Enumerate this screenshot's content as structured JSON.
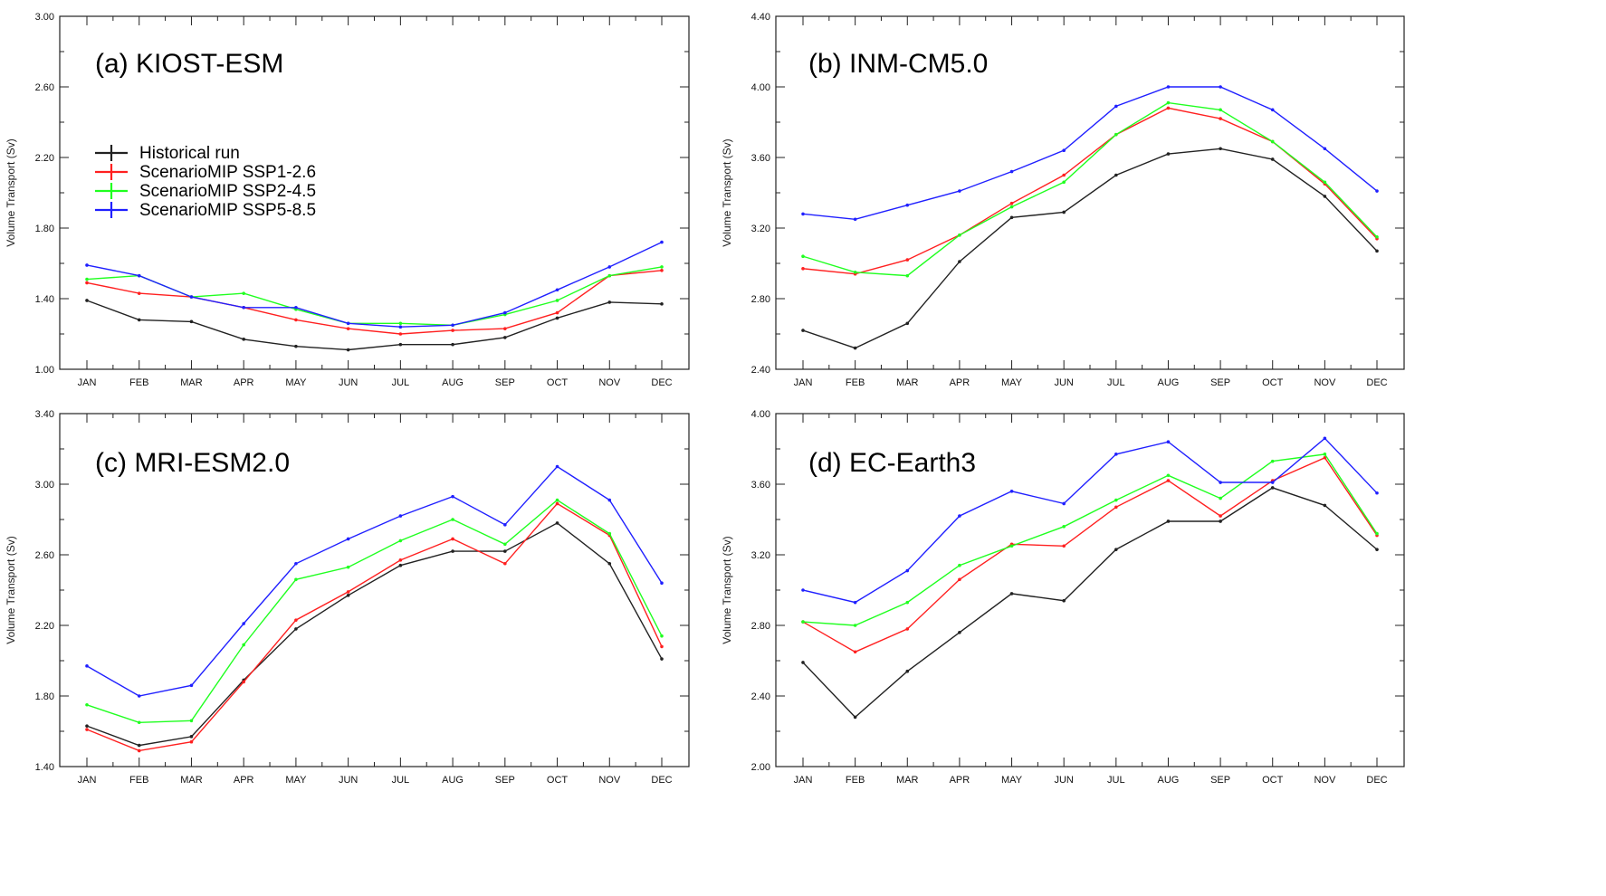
{
  "chart_data": {
    "type": "line",
    "months": [
      "JAN",
      "FEB",
      "MAR",
      "APR",
      "MAY",
      "JUN",
      "JUL",
      "AUG",
      "SEP",
      "OCT",
      "NOV",
      "DEC"
    ],
    "ylabel": "Volume Transport (Sv)",
    "legend": [
      {
        "name": "Historical run",
        "color": "#222222"
      },
      {
        "name": "ScenarioMIP SSP1-2.6",
        "color": "#ff2020"
      },
      {
        "name": "ScenarioMIP SSP2-4.5",
        "color": "#20ff20"
      },
      {
        "name": "ScenarioMIP SSP5-8.5",
        "color": "#2020ff"
      }
    ],
    "panels": [
      {
        "title": "(a) KIOST-ESM",
        "ylim": [
          1.0,
          3.0
        ],
        "yticks": [
          "1.00",
          "1.40",
          "1.80",
          "2.20",
          "2.60",
          "3.00"
        ],
        "series": [
          {
            "name": "Historical run",
            "values": [
              1.39,
              1.28,
              1.27,
              1.17,
              1.13,
              1.11,
              1.14,
              1.14,
              1.18,
              1.29,
              1.38,
              1.37
            ]
          },
          {
            "name": "ScenarioMIP SSP1-2.6",
            "values": [
              1.49,
              1.43,
              1.41,
              1.35,
              1.28,
              1.23,
              1.2,
              1.22,
              1.23,
              1.32,
              1.53,
              1.56
            ]
          },
          {
            "name": "ScenarioMIP SSP2-4.5",
            "values": [
              1.51,
              1.53,
              1.41,
              1.43,
              1.34,
              1.26,
              1.26,
              1.25,
              1.31,
              1.39,
              1.53,
              1.58
            ]
          },
          {
            "name": "ScenarioMIP SSP5-8.5",
            "values": [
              1.59,
              1.53,
              1.41,
              1.35,
              1.35,
              1.26,
              1.24,
              1.25,
              1.32,
              1.45,
              1.58,
              1.72
            ]
          }
        ]
      },
      {
        "title": "(b) INM-CM5.0",
        "ylim": [
          2.4,
          4.4
        ],
        "yticks": [
          "2.40",
          "2.80",
          "3.20",
          "3.60",
          "4.00",
          "4.40"
        ],
        "series": [
          {
            "name": "Historical run",
            "values": [
              2.62,
              2.52,
              2.66,
              3.01,
              3.26,
              3.29,
              3.5,
              3.62,
              3.65,
              3.59,
              3.38,
              3.07
            ]
          },
          {
            "name": "ScenarioMIP SSP1-2.6",
            "values": [
              2.97,
              2.94,
              3.02,
              3.16,
              3.34,
              3.5,
              3.73,
              3.88,
              3.82,
              3.69,
              3.45,
              3.14
            ]
          },
          {
            "name": "ScenarioMIP SSP2-4.5",
            "values": [
              3.04,
              2.95,
              2.93,
              3.16,
              3.32,
              3.46,
              3.73,
              3.91,
              3.87,
              3.69,
              3.46,
              3.15
            ]
          },
          {
            "name": "ScenarioMIP SSP5-8.5",
            "values": [
              3.28,
              3.25,
              3.33,
              3.41,
              3.52,
              3.64,
              3.89,
              4.0,
              4.0,
              3.87,
              3.65,
              3.41
            ]
          }
        ]
      },
      {
        "title": "(c) MRI-ESM2.0",
        "ylim": [
          1.4,
          3.4
        ],
        "yticks": [
          "1.40",
          "1.80",
          "2.20",
          "2.60",
          "3.00",
          "3.40"
        ],
        "series": [
          {
            "name": "Historical run",
            "values": [
              1.63,
              1.52,
              1.57,
              1.89,
              2.18,
              2.37,
              2.54,
              2.62,
              2.62,
              2.78,
              2.55,
              2.01
            ]
          },
          {
            "name": "ScenarioMIP SSP1-2.6",
            "values": [
              1.61,
              1.49,
              1.54,
              1.88,
              2.23,
              2.39,
              2.57,
              2.69,
              2.55,
              2.89,
              2.71,
              2.08
            ]
          },
          {
            "name": "ScenarioMIP SSP2-4.5",
            "values": [
              1.75,
              1.65,
              1.66,
              2.09,
              2.46,
              2.53,
              2.68,
              2.8,
              2.66,
              2.91,
              2.72,
              2.14
            ]
          },
          {
            "name": "ScenarioMIP SSP5-8.5",
            "values": [
              1.97,
              1.8,
              1.86,
              2.21,
              2.55,
              2.69,
              2.82,
              2.93,
              2.77,
              3.1,
              2.91,
              2.44
            ]
          }
        ]
      },
      {
        "title": "(d) EC-Earth3",
        "ylim": [
          2.0,
          4.0
        ],
        "yticks": [
          "2.00",
          "2.40",
          "2.80",
          "3.20",
          "3.60",
          "4.00"
        ],
        "series": [
          {
            "name": "Historical run",
            "values": [
              2.59,
              2.28,
              2.54,
              2.76,
              2.98,
              2.94,
              3.23,
              3.39,
              3.39,
              3.58,
              3.48,
              3.23
            ]
          },
          {
            "name": "ScenarioMIP SSP1-2.6",
            "values": [
              2.82,
              2.65,
              2.78,
              3.06,
              3.26,
              3.25,
              3.47,
              3.62,
              3.42,
              3.62,
              3.75,
              3.31
            ]
          },
          {
            "name": "ScenarioMIP SSP2-4.5",
            "values": [
              2.82,
              2.8,
              2.93,
              3.14,
              3.25,
              3.36,
              3.51,
              3.65,
              3.52,
              3.73,
              3.77,
              3.32
            ]
          },
          {
            "name": "ScenarioMIP SSP5-8.5",
            "values": [
              3.0,
              2.93,
              3.11,
              3.42,
              3.56,
              3.49,
              3.77,
              3.84,
              3.61,
              3.61,
              3.86,
              3.55
            ]
          }
        ]
      }
    ]
  }
}
